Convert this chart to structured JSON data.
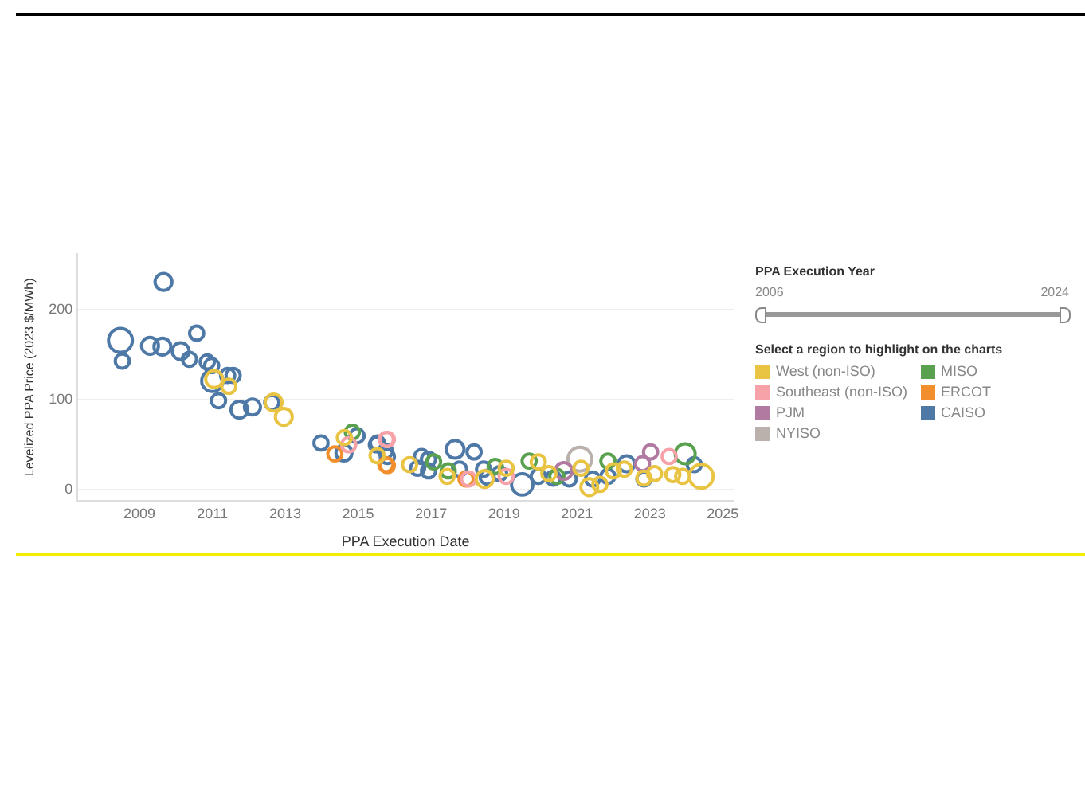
{
  "chart_data": {
    "type": "bubble",
    "xlabel": "PPA Execution Date",
    "ylabel": "Levelized PPA Price (2023 $/MWh)",
    "legend_title": "Select a region to highlight on the charts",
    "legend": "right",
    "grid": "y",
    "marker": "circle",
    "annotations": [
      "PPA Execution Year",
      "2006",
      "2024"
    ],
    "xlim": [
      2007.3,
      2025.3
    ],
    "xticks": [
      2009,
      2011,
      2013,
      2015,
      2017,
      2019,
      2021,
      2023,
      2025
    ],
    "ylim": [
      -12,
      262
    ],
    "yticks": [
      0,
      100,
      200
    ],
    "series": [
      {
        "name": "West (non-ISO)",
        "color": "#e9c443",
        "x": [
          2011.05,
          2011.45,
          2012.68,
          2012.96,
          2014.62,
          2015.52,
          2016.41,
          2017.44,
          2018.47,
          2019.06,
          2019.94,
          2020.23,
          2021.11,
          2021.34,
          2021.63,
          2022.0,
          2022.3,
          2022.84,
          2023.13,
          2023.63,
          2023.9,
          2024.41
        ],
        "values": [
          123,
          115,
          97,
          81,
          58,
          38,
          28,
          15,
          12,
          24,
          31,
          18,
          24,
          3,
          6,
          21,
          23,
          13,
          18,
          17,
          15,
          15
        ],
        "sizes": [
          0.5,
          0.35,
          0.5,
          0.5,
          0.35,
          0.35,
          0.35,
          0.35,
          0.5,
          0.35,
          0.35,
          0.35,
          0.35,
          0.5,
          0.35,
          0.35,
          0.35,
          0.35,
          0.35,
          0.35,
          0.35,
          1
        ]
      },
      {
        "name": "Southeast (non-ISO)",
        "color": "#f7a1a8",
        "x": [
          2014.74,
          2015.77,
          2015.8,
          2018.03,
          2019.06,
          2023.53
        ],
        "values": [
          50,
          56,
          56,
          12,
          15,
          37
        ],
        "sizes": [
          0.35,
          0.35,
          0.35,
          0.35,
          0.35,
          0.35
        ]
      },
      {
        "name": "PJM",
        "color": "#b07aa1",
        "x": [
          2020.64,
          2022.8,
          2023.02
        ],
        "values": [
          21,
          29,
          42
        ],
        "sizes": [
          0.5,
          0.35,
          0.35
        ]
      },
      {
        "name": "NYISO",
        "color": "#bab0ac",
        "x": [
          2021.08
        ],
        "values": [
          34
        ],
        "sizes": [
          1
        ]
      },
      {
        "name": "MISO",
        "color": "#59a14f",
        "x": [
          2014.84,
          2017.07,
          2017.47,
          2018.76,
          2019.69,
          2020.45,
          2021.85,
          2023.97
        ],
        "values": [
          64,
          31,
          21,
          26,
          32,
          15,
          32,
          40
        ],
        "sizes": [
          0.35,
          0.35,
          0.35,
          0.35,
          0.35,
          0.35,
          0.35,
          0.7
        ]
      },
      {
        "name": "ERCOT",
        "color": "#f28e2b",
        "x": [
          2014.36,
          2015.76,
          2015.8,
          2017.96
        ],
        "values": [
          40,
          28,
          27,
          12
        ],
        "sizes": [
          0.35,
          0.35,
          0.35,
          0.35
        ]
      },
      {
        "name": "CAISO",
        "color": "#4e79a7",
        "x": [
          2008.48,
          2008.53,
          2009.29,
          2009.63,
          2009.66,
          2010.13,
          2010.37,
          2010.57,
          2010.86,
          2010.98,
          2011.0,
          2011.17,
          2011.42,
          2011.57,
          2011.74,
          2012.1,
          2012.63,
          2013.98,
          2014.61,
          2014.97,
          2015.5,
          2015.53,
          2015.75,
          2015.8,
          2016.63,
          2016.74,
          2016.93,
          2016.93,
          2017.66,
          2017.78,
          2018.18,
          2018.44,
          2018.54,
          2018.88,
          2019.5,
          2019.94,
          2020.35,
          2020.79,
          2021.43,
          2021.85,
          2022.36,
          2022.84,
          2024.22
        ],
        "values": [
          166,
          143,
          160,
          159,
          231,
          154,
          145,
          174,
          142,
          138,
          121,
          99,
          127,
          127,
          89,
          92,
          97,
          52,
          41,
          60,
          50,
          52,
          43,
          37,
          24,
          37,
          34,
          21,
          45,
          23,
          42,
          23,
          14,
          18,
          6,
          15,
          13,
          12,
          12,
          15,
          29,
          12,
          28
        ],
        "sizes": [
          1,
          0.35,
          0.5,
          0.5,
          0.5,
          0.5,
          0.35,
          0.35,
          0.35,
          0.35,
          0.8,
          0.35,
          0.35,
          0.35,
          0.5,
          0.45,
          0.35,
          0.35,
          0.45,
          0.35,
          0.35,
          0.35,
          0.35,
          0.35,
          0.35,
          0.35,
          0.35,
          0.35,
          0.55,
          0.35,
          0.35,
          0.35,
          0.35,
          0.35,
          0.8,
          0.35,
          0.35,
          0.35,
          0.35,
          0.35,
          0.45,
          0.35,
          0.35
        ]
      }
    ]
  }
}
